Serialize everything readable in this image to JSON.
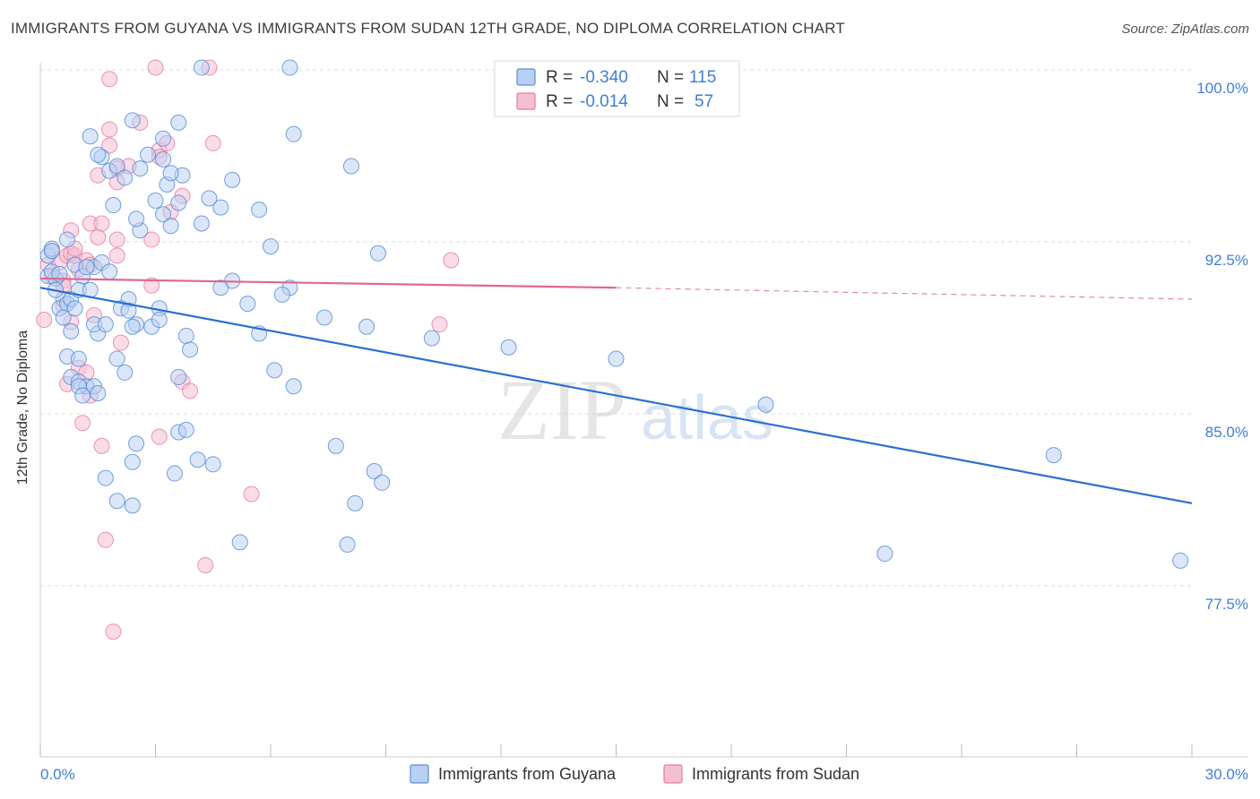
{
  "title": "IMMIGRANTS FROM GUYANA VS IMMIGRANTS FROM SUDAN 12TH GRADE, NO DIPLOMA CORRELATION CHART",
  "source": "Source: ZipAtlas.com",
  "watermark": {
    "zip": "ZIP",
    "atlas": "atlas"
  },
  "colors": {
    "blue": "#5b8fd6",
    "blue_fill": "#b8d0f3",
    "pink": "#e67ba1",
    "pink_fill": "#f5bfd3",
    "blue_line": "#2a6fd0",
    "pink_line": "#e0678f",
    "tick_label": "#3f7fd6"
  },
  "chart_data": {
    "type": "scatter",
    "xlabel": "",
    "ylabel": "12th Grade, No Diploma",
    "xlim": [
      0,
      30
    ],
    "ylim": [
      70.0,
      101.0
    ],
    "x_tick_labels": {
      "left": "0.0%",
      "right": "30.0%"
    },
    "y_ticks": [
      {
        "value": 100.0,
        "label": "100.0%"
      },
      {
        "value": 92.5,
        "label": "92.5%"
      },
      {
        "value": 85.0,
        "label": "85.0%"
      },
      {
        "value": 77.5,
        "label": "77.5%"
      }
    ],
    "legend_stats": [
      {
        "r_label": "R =",
        "r_value": "-0.340",
        "n_label": "N =",
        "n_value": "115"
      },
      {
        "r_label": "R =",
        "r_value": "-0.014",
        "n_label": "N =",
        "n_value": "57"
      }
    ],
    "series": [
      {
        "name": "Immigrants from Guyana",
        "trend": {
          "x0": 0.0,
          "y0": 90.5,
          "x1": 30.0,
          "y1": 81.1
        },
        "points": [
          [
            0.2,
            91.9
          ],
          [
            0.3,
            92.2
          ],
          [
            0.2,
            91.0
          ],
          [
            0.4,
            90.9
          ],
          [
            0.3,
            91.2
          ],
          [
            0.5,
            91.1
          ],
          [
            0.6,
            90.0
          ],
          [
            0.5,
            89.6
          ],
          [
            0.7,
            89.8
          ],
          [
            0.8,
            90.0
          ],
          [
            0.6,
            89.2
          ],
          [
            0.9,
            89.6
          ],
          [
            0.4,
            90.4
          ],
          [
            0.3,
            92.1
          ],
          [
            0.7,
            92.6
          ],
          [
            0.9,
            91.5
          ],
          [
            1.1,
            91.0
          ],
          [
            1.4,
            91.4
          ],
          [
            1.2,
            91.4
          ],
          [
            1.0,
            90.4
          ],
          [
            1.3,
            90.4
          ],
          [
            1.6,
            91.6
          ],
          [
            1.8,
            91.2
          ],
          [
            0.8,
            88.6
          ],
          [
            0.7,
            87.5
          ],
          [
            1.0,
            87.4
          ],
          [
            0.8,
            86.6
          ],
          [
            1.0,
            86.4
          ],
          [
            1.2,
            86.2
          ],
          [
            1.0,
            86.2
          ],
          [
            1.1,
            85.8
          ],
          [
            1.4,
            86.2
          ],
          [
            1.5,
            85.9
          ],
          [
            1.5,
            88.5
          ],
          [
            1.4,
            88.9
          ],
          [
            1.7,
            88.9
          ],
          [
            2.5,
            88.9
          ],
          [
            2.4,
            88.8
          ],
          [
            2.9,
            88.8
          ],
          [
            2.3,
            90.0
          ],
          [
            2.1,
            89.6
          ],
          [
            2.3,
            89.5
          ],
          [
            3.1,
            89.6
          ],
          [
            3.1,
            89.1
          ],
          [
            2.0,
            87.4
          ],
          [
            2.2,
            86.8
          ],
          [
            3.6,
            86.6
          ],
          [
            3.8,
            88.4
          ],
          [
            3.9,
            87.8
          ],
          [
            3.6,
            84.2
          ],
          [
            3.8,
            84.3
          ],
          [
            4.1,
            83.0
          ],
          [
            4.5,
            82.8
          ],
          [
            3.5,
            82.4
          ],
          [
            2.5,
            83.7
          ],
          [
            2.4,
            82.9
          ],
          [
            1.7,
            82.2
          ],
          [
            2.0,
            81.2
          ],
          [
            2.4,
            81.0
          ],
          [
            5.0,
            90.8
          ],
          [
            4.7,
            90.5
          ],
          [
            5.4,
            89.8
          ],
          [
            5.7,
            88.5
          ],
          [
            6.1,
            86.9
          ],
          [
            6.6,
            86.2
          ],
          [
            6.5,
            90.5
          ],
          [
            6.3,
            90.2
          ],
          [
            7.4,
            89.2
          ],
          [
            8.8,
            92.0
          ],
          [
            8.5,
            88.8
          ],
          [
            7.7,
            83.6
          ],
          [
            8.7,
            82.5
          ],
          [
            8.9,
            82.0
          ],
          [
            8.2,
            81.1
          ],
          [
            8.0,
            79.3
          ],
          [
            10.2,
            88.3
          ],
          [
            5.2,
            79.4
          ],
          [
            2.6,
            93.0
          ],
          [
            3.2,
            93.7
          ],
          [
            3.4,
            93.2
          ],
          [
            2.5,
            93.5
          ],
          [
            3.7,
            95.4
          ],
          [
            4.2,
            93.3
          ],
          [
            3.3,
            95.0
          ],
          [
            3.0,
            94.3
          ],
          [
            3.6,
            94.2
          ],
          [
            4.7,
            94.0
          ],
          [
            5.0,
            95.2
          ],
          [
            5.7,
            93.9
          ],
          [
            6.0,
            92.3
          ],
          [
            1.6,
            96.2
          ],
          [
            1.8,
            95.6
          ],
          [
            2.0,
            95.8
          ],
          [
            2.2,
            95.3
          ],
          [
            2.6,
            95.7
          ],
          [
            2.8,
            96.3
          ],
          [
            3.2,
            96.1
          ],
          [
            3.4,
            95.5
          ],
          [
            2.4,
            97.8
          ],
          [
            3.2,
            97.0
          ],
          [
            3.6,
            97.7
          ],
          [
            4.4,
            94.4
          ],
          [
            1.3,
            97.1
          ],
          [
            1.5,
            96.3
          ],
          [
            1.9,
            94.1
          ],
          [
            4.2,
            100.1
          ],
          [
            6.5,
            100.1
          ],
          [
            6.6,
            97.2
          ],
          [
            8.1,
            95.8
          ],
          [
            12.2,
            87.9
          ],
          [
            15.0,
            87.4
          ],
          [
            18.9,
            85.4
          ],
          [
            22.0,
            78.9
          ],
          [
            26.4,
            83.2
          ],
          [
            29.7,
            78.6
          ]
        ]
      },
      {
        "name": "Immigrants from Sudan",
        "trend": {
          "x0": 0.0,
          "y0": 90.9,
          "x1": 15.0,
          "y1": 90.5
        },
        "trend_dashed": {
          "x0": 15.0,
          "y0": 90.5,
          "x1": 30.0,
          "y1": 90.0
        },
        "points": [
          [
            0.1,
            89.1
          ],
          [
            0.2,
            91.5
          ],
          [
            0.3,
            92.1
          ],
          [
            0.3,
            91.0
          ],
          [
            0.5,
            91.6
          ],
          [
            0.6,
            90.8
          ],
          [
            0.7,
            91.9
          ],
          [
            0.8,
            92.0
          ],
          [
            0.9,
            91.9
          ],
          [
            1.0,
            91.3
          ],
          [
            1.2,
            91.7
          ],
          [
            1.3,
            91.5
          ],
          [
            0.9,
            92.2
          ],
          [
            0.8,
            93.0
          ],
          [
            1.3,
            93.3
          ],
          [
            1.5,
            92.7
          ],
          [
            1.6,
            93.3
          ],
          [
            2.0,
            92.6
          ],
          [
            2.0,
            91.9
          ],
          [
            2.9,
            92.6
          ],
          [
            0.6,
            90.6
          ],
          [
            0.6,
            89.7
          ],
          [
            0.8,
            89.0
          ],
          [
            1.4,
            89.3
          ],
          [
            2.1,
            88.1
          ],
          [
            2.9,
            90.6
          ],
          [
            1.0,
            87.0
          ],
          [
            1.2,
            86.8
          ],
          [
            0.7,
            86.3
          ],
          [
            1.3,
            85.8
          ],
          [
            1.1,
            84.6
          ],
          [
            3.7,
            86.4
          ],
          [
            3.9,
            86.0
          ],
          [
            1.6,
            83.6
          ],
          [
            3.1,
            84.0
          ],
          [
            5.5,
            81.5
          ],
          [
            1.7,
            79.5
          ],
          [
            4.3,
            78.4
          ],
          [
            1.9,
            75.5
          ],
          [
            10.4,
            88.9
          ],
          [
            10.7,
            91.7
          ],
          [
            3.4,
            93.8
          ],
          [
            3.7,
            94.5
          ],
          [
            1.5,
            95.4
          ],
          [
            2.0,
            95.1
          ],
          [
            2.3,
            95.8
          ],
          [
            1.8,
            97.4
          ],
          [
            1.8,
            96.7
          ],
          [
            2.6,
            97.7
          ],
          [
            3.1,
            96.5
          ],
          [
            3.1,
            96.2
          ],
          [
            3.3,
            96.8
          ],
          [
            4.5,
            96.8
          ],
          [
            1.8,
            99.6
          ],
          [
            3.0,
            100.1
          ],
          [
            4.4,
            100.1
          ],
          [
            2.0,
            95.7
          ]
        ]
      }
    ]
  }
}
